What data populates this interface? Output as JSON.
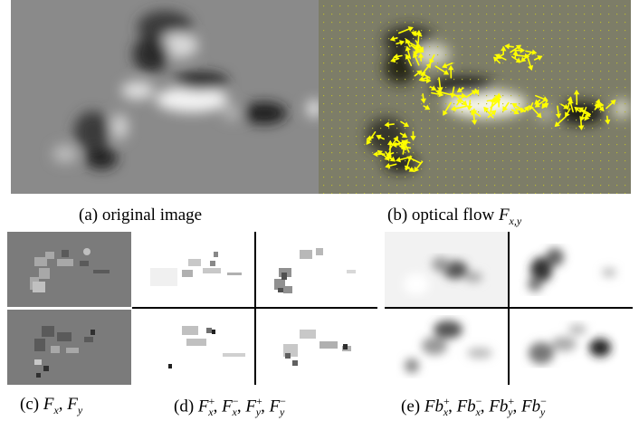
{
  "figure": {
    "captions": {
      "a": {
        "label": "(a)",
        "text": "original image"
      },
      "b": {
        "label": "(b)",
        "text": "optical flow",
        "symbol": "F",
        "subscript": "x,y"
      },
      "c": {
        "label": "(c)",
        "terms": [
          {
            "base": "F",
            "sub": "x",
            "sup": ""
          },
          {
            "base": "F",
            "sub": "y",
            "sup": ""
          }
        ]
      },
      "d": {
        "label": "(d)",
        "terms": [
          {
            "base": "F",
            "sub": "x",
            "sup": "+"
          },
          {
            "base": "F",
            "sub": "x",
            "sup": "−"
          },
          {
            "base": "F",
            "sub": "y",
            "sup": "+"
          },
          {
            "base": "F",
            "sub": "y",
            "sup": "−"
          }
        ]
      },
      "e": {
        "label": "(e)",
        "terms": [
          {
            "base": "Fb",
            "sub": "x",
            "sup": "+"
          },
          {
            "base": "Fb",
            "sub": "x",
            "sup": "−"
          },
          {
            "base": "Fb",
            "sub": "y",
            "sup": "+"
          },
          {
            "base": "Fb",
            "sub": "y",
            "sup": "−"
          }
        ]
      }
    },
    "colors": {
      "flow_arrows": "#ffff00",
      "grid_dots": "#b8b830"
    }
  }
}
